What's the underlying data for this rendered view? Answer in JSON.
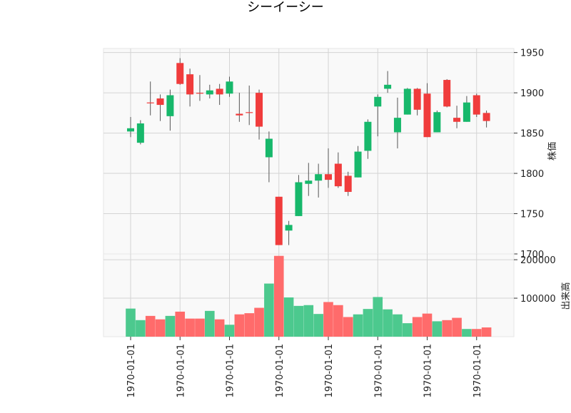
{
  "chart_data": {
    "type": "candlestick",
    "title": "シーイーシー",
    "colors": {
      "up": "#17b86b",
      "down": "#f03c3c",
      "volume_up": "#4cc98e",
      "volume_down": "#ff6b6b",
      "wick": "#555555",
      "grid": "#d4d4d4",
      "panel_bg": "#f9f9f9"
    },
    "price_panel": {
      "ylabel": "株価",
      "ylim": [
        1700,
        1955
      ],
      "ticks": [
        "1700",
        "1750",
        "1800",
        "1850",
        "1900",
        "1950"
      ],
      "tick_values": [
        1700,
        1750,
        1800,
        1850,
        1900,
        1950
      ],
      "grid": true
    },
    "volume_panel": {
      "ylabel": "出来高",
      "ylim": [
        0,
        215000
      ],
      "ticks": [
        "100000",
        "200000"
      ],
      "tick_values": [
        100000,
        200000
      ],
      "grid": true
    },
    "x_tick_labels": [
      "1970-01-01",
      "1970-01-01",
      "1970-01-01",
      "1970-01-01",
      "1970-01-01",
      "1970-01-01",
      "1970-01-01",
      "1970-01-01"
    ],
    "x_tick_positions": [
      0,
      5,
      10,
      15,
      20,
      25,
      30,
      35
    ],
    "candles": [
      {
        "o": 1852,
        "h": 1870,
        "l": 1845,
        "c": 1856
      },
      {
        "o": 1838,
        "h": 1866,
        "l": 1836,
        "c": 1862
      },
      {
        "o": 1888,
        "h": 1914,
        "l": 1872,
        "c": 1887
      },
      {
        "o": 1893,
        "h": 1898,
        "l": 1865,
        "c": 1885
      },
      {
        "o": 1871,
        "h": 1904,
        "l": 1853,
        "c": 1897
      },
      {
        "o": 1937,
        "h": 1943,
        "l": 1910,
        "c": 1911
      },
      {
        "o": 1923,
        "h": 1930,
        "l": 1883,
        "c": 1898
      },
      {
        "o": 1900,
        "h": 1922,
        "l": 1890,
        "c": 1899
      },
      {
        "o": 1898,
        "h": 1910,
        "l": 1893,
        "c": 1903
      },
      {
        "o": 1905,
        "h": 1911,
        "l": 1885,
        "c": 1898
      },
      {
        "o": 1899,
        "h": 1920,
        "l": 1895,
        "c": 1914
      },
      {
        "o": 1874,
        "h": 1900,
        "l": 1864,
        "c": 1872
      },
      {
        "o": 1876,
        "h": 1909,
        "l": 1860,
        "c": 1875
      },
      {
        "o": 1900,
        "h": 1904,
        "l": 1842,
        "c": 1858
      },
      {
        "o": 1820,
        "h": 1852,
        "l": 1789,
        "c": 1843
      },
      {
        "o": 1771,
        "h": 1771,
        "l": 1711,
        "c": 1711
      },
      {
        "o": 1729,
        "h": 1741,
        "l": 1711,
        "c": 1736
      },
      {
        "o": 1747,
        "h": 1798,
        "l": 1747,
        "c": 1789
      },
      {
        "o": 1787,
        "h": 1813,
        "l": 1772,
        "c": 1791
      },
      {
        "o": 1791,
        "h": 1812,
        "l": 1770,
        "c": 1799
      },
      {
        "o": 1799,
        "h": 1831,
        "l": 1782,
        "c": 1792
      },
      {
        "o": 1812,
        "h": 1826,
        "l": 1782,
        "c": 1784
      },
      {
        "o": 1797,
        "h": 1802,
        "l": 1772,
        "c": 1777
      },
      {
        "o": 1795,
        "h": 1834,
        "l": 1795,
        "c": 1827
      },
      {
        "o": 1828,
        "h": 1867,
        "l": 1818,
        "c": 1864
      },
      {
        "o": 1883,
        "h": 1898,
        "l": 1846,
        "c": 1895
      },
      {
        "o": 1905,
        "h": 1927,
        "l": 1900,
        "c": 1910
      },
      {
        "o": 1851,
        "h": 1894,
        "l": 1831,
        "c": 1869
      },
      {
        "o": 1873,
        "h": 1906,
        "l": 1873,
        "c": 1905
      },
      {
        "o": 1905,
        "h": 1906,
        "l": 1872,
        "c": 1879
      },
      {
        "o": 1899,
        "h": 1912,
        "l": 1845,
        "c": 1845
      },
      {
        "o": 1851,
        "h": 1878,
        "l": 1851,
        "c": 1876
      },
      {
        "o": 1916,
        "h": 1917,
        "l": 1882,
        "c": 1883
      },
      {
        "o": 1869,
        "h": 1884,
        "l": 1856,
        "c": 1864
      },
      {
        "o": 1864,
        "h": 1896,
        "l": 1864,
        "c": 1888
      },
      {
        "o": 1897,
        "h": 1899,
        "l": 1870,
        "c": 1873
      },
      {
        "o": 1875,
        "h": 1878,
        "l": 1857,
        "c": 1865
      }
    ],
    "volumes": [
      73000,
      43000,
      54000,
      45000,
      54000,
      65000,
      47000,
      47000,
      67000,
      45000,
      31000,
      58000,
      61000,
      75000,
      138000,
      210000,
      102000,
      80000,
      82000,
      59000,
      90000,
      82000,
      51000,
      58000,
      72000,
      103000,
      71000,
      58000,
      35000,
      51000,
      60000,
      40000,
      43000,
      49000,
      20000,
      20000,
      24000
    ]
  }
}
